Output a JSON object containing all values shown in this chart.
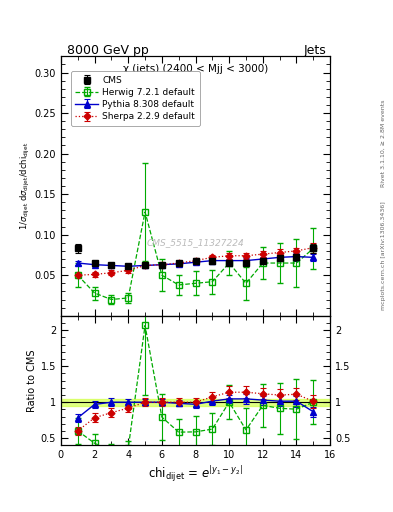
{
  "title_top": "8000 GeV pp",
  "title_right": "Jets",
  "plot_title": "χ (jets) (2400 < Mjj < 3000)",
  "ylabel_main": "1/σ_{dijet} dσ_{dijet}/dchi_{dijet}",
  "ylabel_ratio": "Ratio to CMS",
  "xlabel": "chi_{dijet} = e^{|y_1 - y_2|}",
  "right_label_top": "Rivet 3.1.10, ≥ 2.8M events",
  "right_label_bot": "mcplots.cern.ch [arXiv:1306.3436]",
  "watermark": "CMS_5515_11327224",
  "xlim": [
    0,
    16
  ],
  "ylim_main": [
    0.0,
    0.32
  ],
  "ylim_ratio": [
    0.4,
    2.2
  ],
  "cms_x": [
    1,
    2,
    3,
    4,
    5,
    6,
    7,
    8,
    9,
    10,
    11,
    12,
    13,
    14,
    15
  ],
  "cms_y": [
    0.083,
    0.065,
    0.062,
    0.061,
    0.062,
    0.063,
    0.065,
    0.068,
    0.067,
    0.065,
    0.065,
    0.068,
    0.071,
    0.072,
    0.083
  ],
  "cms_ey": [
    0.005,
    0.003,
    0.003,
    0.002,
    0.002,
    0.002,
    0.002,
    0.003,
    0.003,
    0.003,
    0.003,
    0.003,
    0.004,
    0.004,
    0.005
  ],
  "herwig_x": [
    1,
    2,
    3,
    4,
    5,
    6,
    7,
    8,
    9,
    10,
    11,
    12,
    13,
    14,
    15
  ],
  "herwig_y": [
    0.05,
    0.028,
    0.02,
    0.022,
    0.128,
    0.05,
    0.038,
    0.04,
    0.042,
    0.065,
    0.04,
    0.065,
    0.065,
    0.065,
    0.083
  ],
  "herwig_ey": [
    0.015,
    0.008,
    0.006,
    0.006,
    0.06,
    0.02,
    0.012,
    0.015,
    0.015,
    0.015,
    0.02,
    0.02,
    0.025,
    0.03,
    0.025
  ],
  "pythia_x": [
    1,
    2,
    3,
    4,
    5,
    6,
    7,
    8,
    9,
    10,
    11,
    12,
    13,
    14,
    15
  ],
  "pythia_y": [
    0.065,
    0.063,
    0.062,
    0.061,
    0.062,
    0.063,
    0.064,
    0.066,
    0.068,
    0.068,
    0.068,
    0.07,
    0.072,
    0.073,
    0.072
  ],
  "pythia_ey": [
    0.003,
    0.002,
    0.002,
    0.002,
    0.002,
    0.002,
    0.002,
    0.002,
    0.002,
    0.002,
    0.003,
    0.003,
    0.003,
    0.004,
    0.004
  ],
  "sherpa_x": [
    1,
    2,
    3,
    4,
    5,
    6,
    7,
    8,
    9,
    10,
    11,
    12,
    13,
    14,
    15
  ],
  "sherpa_y": [
    0.05,
    0.051,
    0.053,
    0.056,
    0.062,
    0.063,
    0.065,
    0.068,
    0.072,
    0.074,
    0.074,
    0.076,
    0.078,
    0.08,
    0.084
  ],
  "sherpa_ey": [
    0.004,
    0.003,
    0.003,
    0.003,
    0.003,
    0.003,
    0.003,
    0.003,
    0.003,
    0.004,
    0.004,
    0.004,
    0.004,
    0.004,
    0.006
  ],
  "cms_color": "#000000",
  "herwig_color": "#00aa00",
  "pythia_color": "#0000cc",
  "sherpa_color": "#cc0000",
  "ratio_band_color": "#ccff33",
  "ratio_band_alpha": 0.6,
  "bg_color": "#ffffff",
  "frame_color": "#aaaaaa"
}
